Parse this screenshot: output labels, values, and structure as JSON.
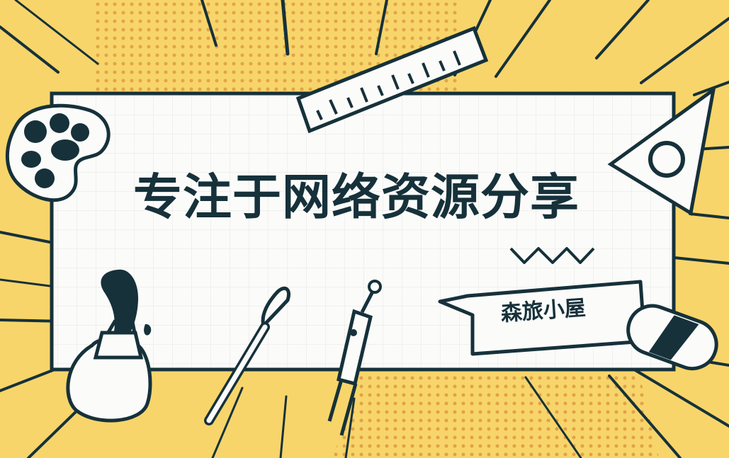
{
  "title": "专注于网络资源分享",
  "badge": "森旅小屋",
  "colors": {
    "background": "#f7d56a",
    "ink": "#16313a",
    "paper": "#fbfbfa",
    "grid": "#e4e4e1"
  },
  "icons": [
    "paint-palette-icon",
    "ruler-icon",
    "triangle-ruler-icon",
    "zigzag-icon",
    "ink-bottle-icon",
    "paint-brush-icon",
    "compass-icon",
    "speech-bubble-icon",
    "eraser-icon"
  ]
}
